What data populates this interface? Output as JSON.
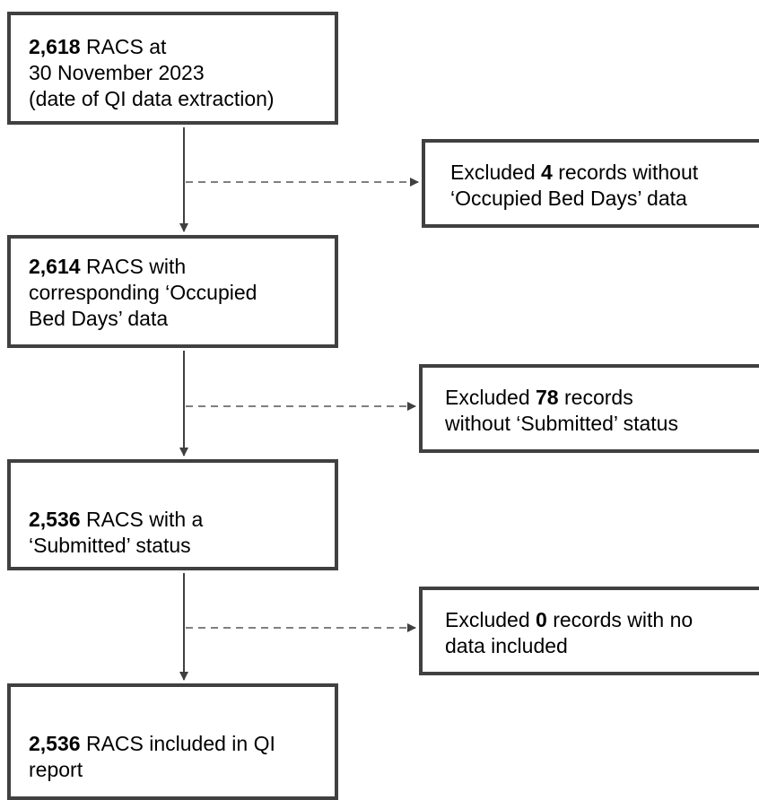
{
  "steps": [
    {
      "count": "2,618",
      "line1_rest": " RACS at",
      "line2": "30 November 2023",
      "line3": "(date of QI data extraction)"
    },
    {
      "count": "2,614",
      "line1_rest": " RACS with",
      "line2": "corresponding ‘Occupied",
      "line3": "Bed Days’ data"
    },
    {
      "count": "2,536",
      "line1_rest": " RACS with a",
      "line2": "‘Submitted’ status"
    },
    {
      "count": "2,536",
      "line1_rest": " RACS included in QI",
      "line2": "report"
    }
  ],
  "exclusions": [
    {
      "prefix": "Excluded ",
      "count": "4",
      "line1_rest": " records without",
      "line2": "‘Occupied Bed Days’ data"
    },
    {
      "prefix": "Excluded ",
      "count": "78",
      "line1_rest": " records",
      "line2": "without ‘Submitted’ status"
    },
    {
      "prefix": "Excluded ",
      "count": "0",
      "line1_rest": " records with no",
      "line2": "data included"
    }
  ],
  "colors": {
    "border": "#404040",
    "arrow": "#404040",
    "dashed": "#7f7f7f"
  }
}
